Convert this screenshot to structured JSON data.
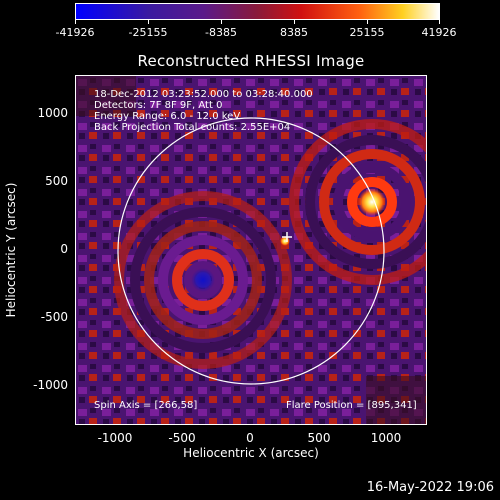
{
  "colorbar": {
    "tick_labels": [
      "-41926",
      "-25155",
      "-8385",
      "8385",
      "25155",
      "41926"
    ]
  },
  "title": "Reconstructed RHESSI Image",
  "info_lines": [
    "18-Dec-2012 03:23:52.000 to 03:28:40.000",
    "Detectors: 7F 8F 9F, Att 0",
    "Energy Range: 6.0 - 12.0 keV",
    "Back Projection    Total counts: 2.55E+04"
  ],
  "spin_axis": "Spin Axis = [266,58]",
  "flare_position": "Flare Position = [895,341]",
  "x_axis": {
    "label": "Heliocentric X (arcsec)",
    "ticks": [
      "-1000",
      "-500",
      "0",
      "500",
      "1000"
    ]
  },
  "y_axis": {
    "label": "Heliocentric Y (arcsec)",
    "ticks": [
      "1000",
      "500",
      "0",
      "-500",
      "-1000"
    ]
  },
  "timestamp": "16-May-2022 19:06"
}
